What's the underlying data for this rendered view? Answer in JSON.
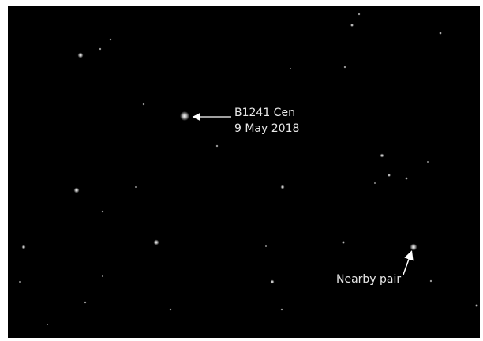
{
  "labels": {
    "target": "B1241  Cen",
    "date": "9 May 2018",
    "pair": "Nearby pair"
  }
}
